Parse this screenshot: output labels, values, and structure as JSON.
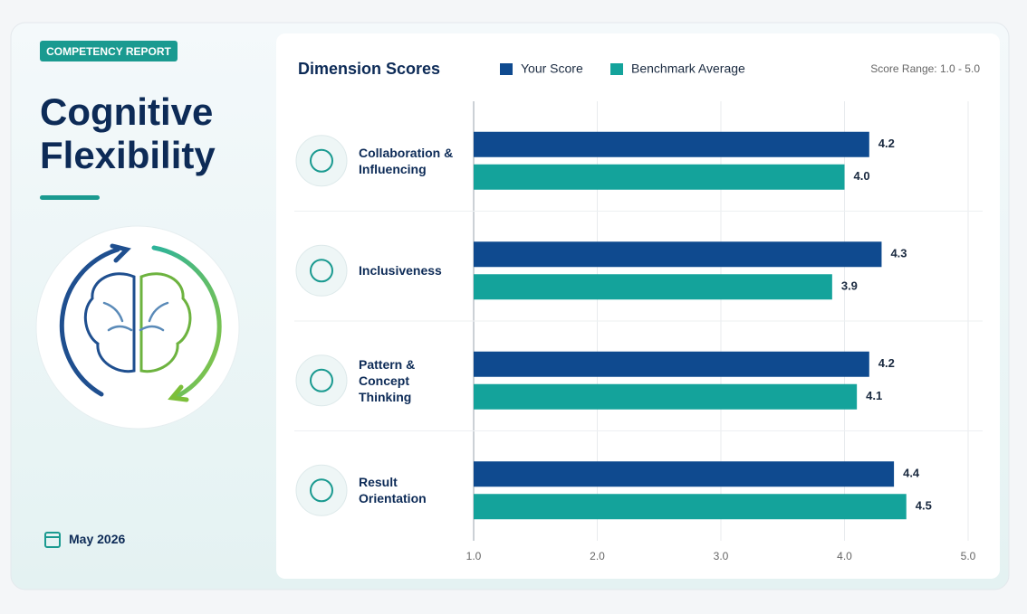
{
  "report": {
    "badge": "COMPETENCY REPORT",
    "title": "Cognitive Flexibility",
    "date": "May 2026"
  },
  "chart_data": {
    "type": "bar",
    "orientation": "horizontal",
    "title": "Dimension Scores",
    "subtitle": "Score Range: 1.0 - 5.0",
    "categories": [
      "Collaboration & Influencing",
      "Inclusiveness",
      "Pattern & Concept Thinking",
      "Result Orientation"
    ],
    "series": [
      {
        "name": "Your Score",
        "color": "#0f4a8f",
        "values": [
          4.2,
          4.3,
          4.2,
          4.4
        ],
        "value_labels": [
          "4.2",
          "4.3",
          "4.2",
          "4.4"
        ]
      },
      {
        "name": "Benchmark Average",
        "color": "#14a39b",
        "values": [
          4.0,
          3.9,
          4.1,
          4.5
        ],
        "value_labels": [
          "4.0",
          "3.9",
          "4.1",
          "4.5"
        ]
      }
    ],
    "xlim": [
      1,
      5
    ],
    "xticks": [
      {
        "value": 1,
        "label": "1.0"
      },
      {
        "value": 2,
        "label": "2.0"
      },
      {
        "value": 3,
        "label": "3.0"
      },
      {
        "value": 4,
        "label": "4.0"
      },
      {
        "value": 5,
        "label": "5.0"
      }
    ],
    "grid": true,
    "legend": "top"
  }
}
